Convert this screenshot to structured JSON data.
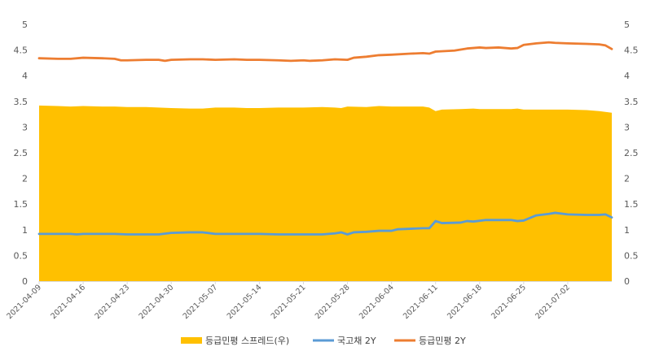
{
  "chart_data": {
    "type": "line",
    "subtype": "area-and-lines",
    "title": "",
    "xlabel": "",
    "ylabel_left": "",
    "ylabel_right": "",
    "ylim_left": [
      0,
      5
    ],
    "ylim_right": [
      0,
      5
    ],
    "yticks_left": [
      "0",
      "0.5",
      "1",
      "1.5",
      "2",
      "2.5",
      "3",
      "3.5",
      "4",
      "4.5",
      "5"
    ],
    "yticks_right": [
      "0",
      "0.5",
      "1",
      "1.5",
      "2",
      "2.5",
      "3",
      "3.5",
      "4",
      "4.5",
      "5"
    ],
    "x_start": "2021-04-09",
    "x_end": "2021-07-09",
    "x_ticks": [
      "2021-04-09",
      "2021-04-16",
      "2021-04-23",
      "2021-04-30",
      "2021-05-07",
      "2021-05-14",
      "2021-05-21",
      "2021-05-28",
      "2021-06-04",
      "2021-06-11",
      "2021-06-18",
      "2021-06-25",
      "2021-07-02"
    ],
    "grid": false,
    "legend_position": "bottom",
    "colors": {
      "area": "#FFC000",
      "gov": "#5B9BD5",
      "corp": "#ED7D31",
      "axis": "#D9D9D9"
    },
    "series": [
      {
        "name": "등급민평 스프레드(우)",
        "kind": "area",
        "axis": "right",
        "points": [
          [
            "2021-04-09",
            3.42
          ],
          [
            "2021-04-12",
            3.41
          ],
          [
            "2021-04-14",
            3.4
          ],
          [
            "2021-04-16",
            3.41
          ],
          [
            "2021-04-19",
            3.4
          ],
          [
            "2021-04-21",
            3.4
          ],
          [
            "2021-04-23",
            3.39
          ],
          [
            "2021-04-26",
            3.39
          ],
          [
            "2021-04-28",
            3.38
          ],
          [
            "2021-04-30",
            3.37
          ],
          [
            "2021-05-03",
            3.36
          ],
          [
            "2021-05-05",
            3.36
          ],
          [
            "2021-05-07",
            3.38
          ],
          [
            "2021-05-10",
            3.38
          ],
          [
            "2021-05-12",
            3.37
          ],
          [
            "2021-05-14",
            3.37
          ],
          [
            "2021-05-17",
            3.38
          ],
          [
            "2021-05-19",
            3.38
          ],
          [
            "2021-05-21",
            3.38
          ],
          [
            "2021-05-24",
            3.39
          ],
          [
            "2021-05-26",
            3.38
          ],
          [
            "2021-05-27",
            3.37
          ],
          [
            "2021-05-28",
            3.4
          ],
          [
            "2021-05-31",
            3.39
          ],
          [
            "2021-06-02",
            3.41
          ],
          [
            "2021-06-04",
            3.4
          ],
          [
            "2021-06-07",
            3.4
          ],
          [
            "2021-06-09",
            3.4
          ],
          [
            "2021-06-10",
            3.38
          ],
          [
            "2021-06-11",
            3.31
          ],
          [
            "2021-06-12",
            3.34
          ],
          [
            "2021-06-15",
            3.35
          ],
          [
            "2021-06-17",
            3.36
          ],
          [
            "2021-06-18",
            3.35
          ],
          [
            "2021-06-21",
            3.35
          ],
          [
            "2021-06-23",
            3.35
          ],
          [
            "2021-06-24",
            3.36
          ],
          [
            "2021-06-25",
            3.34
          ],
          [
            "2021-06-28",
            3.34
          ],
          [
            "2021-06-30",
            3.34
          ],
          [
            "2021-07-02",
            3.34
          ],
          [
            "2021-07-05",
            3.33
          ],
          [
            "2021-07-07",
            3.31
          ],
          [
            "2021-07-09",
            3.28
          ]
        ]
      },
      {
        "name": "국고채 2Y",
        "kind": "line",
        "axis": "left",
        "points": [
          [
            "2021-04-09",
            0.92
          ],
          [
            "2021-04-12",
            0.92
          ],
          [
            "2021-04-14",
            0.92
          ],
          [
            "2021-04-15",
            0.91
          ],
          [
            "2021-04-16",
            0.92
          ],
          [
            "2021-04-19",
            0.92
          ],
          [
            "2021-04-21",
            0.92
          ],
          [
            "2021-04-23",
            0.91
          ],
          [
            "2021-04-26",
            0.91
          ],
          [
            "2021-04-28",
            0.91
          ],
          [
            "2021-04-30",
            0.94
          ],
          [
            "2021-05-03",
            0.95
          ],
          [
            "2021-05-05",
            0.95
          ],
          [
            "2021-05-07",
            0.92
          ],
          [
            "2021-05-10",
            0.92
          ],
          [
            "2021-05-12",
            0.92
          ],
          [
            "2021-05-14",
            0.92
          ],
          [
            "2021-05-17",
            0.91
          ],
          [
            "2021-05-19",
            0.91
          ],
          [
            "2021-05-21",
            0.91
          ],
          [
            "2021-05-24",
            0.91
          ],
          [
            "2021-05-26",
            0.93
          ],
          [
            "2021-05-27",
            0.95
          ],
          [
            "2021-05-28",
            0.91
          ],
          [
            "2021-05-29",
            0.95
          ],
          [
            "2021-05-31",
            0.96
          ],
          [
            "2021-06-02",
            0.98
          ],
          [
            "2021-06-04",
            0.98
          ],
          [
            "2021-06-05",
            1.01
          ],
          [
            "2021-06-07",
            1.02
          ],
          [
            "2021-06-09",
            1.03
          ],
          [
            "2021-06-10",
            1.03
          ],
          [
            "2021-06-11",
            1.17
          ],
          [
            "2021-06-12",
            1.13
          ],
          [
            "2021-06-15",
            1.14
          ],
          [
            "2021-06-16",
            1.17
          ],
          [
            "2021-06-17",
            1.16
          ],
          [
            "2021-06-19",
            1.19
          ],
          [
            "2021-06-21",
            1.19
          ],
          [
            "2021-06-23",
            1.19
          ],
          [
            "2021-06-24",
            1.17
          ],
          [
            "2021-06-25",
            1.18
          ],
          [
            "2021-06-27",
            1.28
          ],
          [
            "2021-06-29",
            1.31
          ],
          [
            "2021-06-30",
            1.33
          ],
          [
            "2021-07-02",
            1.3
          ],
          [
            "2021-07-05",
            1.29
          ],
          [
            "2021-07-07",
            1.29
          ],
          [
            "2021-07-08",
            1.3
          ],
          [
            "2021-07-09",
            1.24
          ]
        ]
      },
      {
        "name": "등급민평 2Y",
        "kind": "line",
        "axis": "left",
        "points": [
          [
            "2021-04-09",
            4.34
          ],
          [
            "2021-04-12",
            4.33
          ],
          [
            "2021-04-14",
            4.33
          ],
          [
            "2021-04-16",
            4.35
          ],
          [
            "2021-04-19",
            4.34
          ],
          [
            "2021-04-21",
            4.33
          ],
          [
            "2021-04-22",
            4.3
          ],
          [
            "2021-04-23",
            4.3
          ],
          [
            "2021-04-26",
            4.31
          ],
          [
            "2021-04-28",
            4.31
          ],
          [
            "2021-04-29",
            4.29
          ],
          [
            "2021-04-30",
            4.31
          ],
          [
            "2021-05-03",
            4.32
          ],
          [
            "2021-05-05",
            4.32
          ],
          [
            "2021-05-07",
            4.31
          ],
          [
            "2021-05-10",
            4.32
          ],
          [
            "2021-05-12",
            4.31
          ],
          [
            "2021-05-14",
            4.31
          ],
          [
            "2021-05-17",
            4.3
          ],
          [
            "2021-05-19",
            4.29
          ],
          [
            "2021-05-21",
            4.3
          ],
          [
            "2021-05-22",
            4.29
          ],
          [
            "2021-05-24",
            4.3
          ],
          [
            "2021-05-26",
            4.32
          ],
          [
            "2021-05-28",
            4.31
          ],
          [
            "2021-05-29",
            4.35
          ],
          [
            "2021-05-31",
            4.37
          ],
          [
            "2021-06-02",
            4.4
          ],
          [
            "2021-06-04",
            4.41
          ],
          [
            "2021-06-07",
            4.43
          ],
          [
            "2021-06-09",
            4.44
          ],
          [
            "2021-06-10",
            4.43
          ],
          [
            "2021-06-11",
            4.47
          ],
          [
            "2021-06-14",
            4.49
          ],
          [
            "2021-06-16",
            4.53
          ],
          [
            "2021-06-18",
            4.55
          ],
          [
            "2021-06-19",
            4.54
          ],
          [
            "2021-06-21",
            4.55
          ],
          [
            "2021-06-23",
            4.53
          ],
          [
            "2021-06-24",
            4.54
          ],
          [
            "2021-06-25",
            4.6
          ],
          [
            "2021-06-27",
            4.63
          ],
          [
            "2021-06-29",
            4.65
          ],
          [
            "2021-06-30",
            4.64
          ],
          [
            "2021-07-02",
            4.63
          ],
          [
            "2021-07-05",
            4.62
          ],
          [
            "2021-07-07",
            4.61
          ],
          [
            "2021-07-08",
            4.59
          ],
          [
            "2021-07-09",
            4.52
          ]
        ]
      }
    ]
  }
}
